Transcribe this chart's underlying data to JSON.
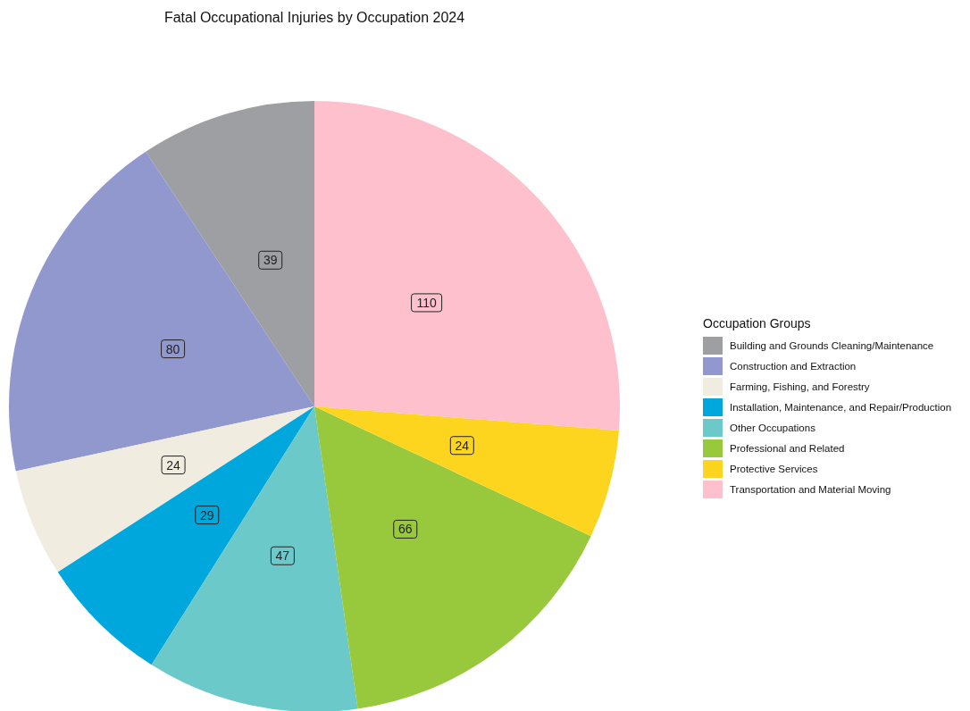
{
  "chart_data": {
    "type": "pie",
    "title": "Fatal Occupational Injuries by Occupation 2024",
    "legend_title": "Occupation Groups",
    "legend": "right",
    "data_labels": true,
    "categories": [
      "Building and Grounds Cleaning/Maintenance",
      "Construction and Extraction",
      "Farming, Fishing, and Forestry",
      "Installation, Maintenance, and Repair/Production",
      "Other Occupations",
      "Professional and Related",
      "Protective Services",
      "Transportation and Material Moving"
    ],
    "values": [
      39,
      80,
      24,
      29,
      47,
      66,
      24,
      110
    ],
    "colors": [
      "#9e9fa3",
      "#9198cd",
      "#f0ecdf",
      "#00a7dc",
      "#6cc9c9",
      "#98c93c",
      "#fdd51e",
      "#fec0cd"
    ]
  }
}
